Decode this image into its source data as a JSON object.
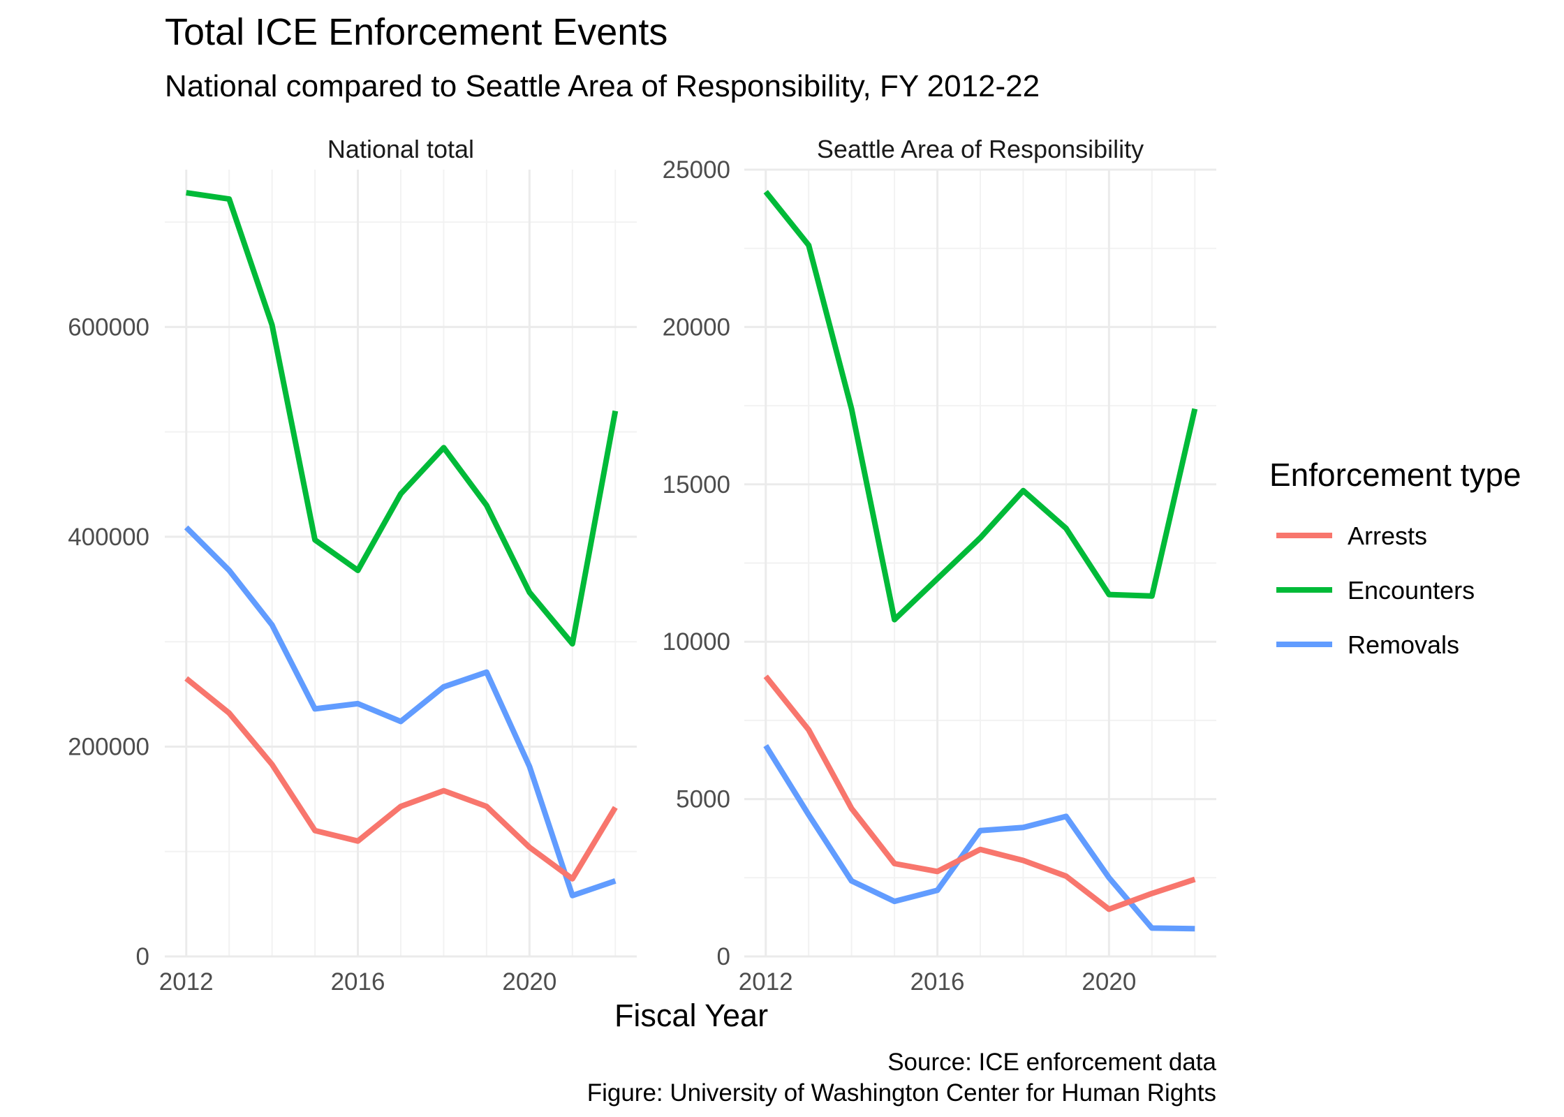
{
  "chart_data": {
    "type": "line",
    "title": "Total ICE Enforcement Events",
    "subtitle": "National compared to Seattle Area of Responsibility, FY 2012-22",
    "xlabel": "Fiscal Year",
    "ylabel": "",
    "x": [
      2012,
      2013,
      2014,
      2015,
      2016,
      2017,
      2018,
      2019,
      2020,
      2021,
      2022
    ],
    "x_ticks": [
      "2012",
      "2016",
      "2020"
    ],
    "grid": true,
    "legend": {
      "title": "Enforcement type",
      "position": "right",
      "items": [
        {
          "name": "Arrests",
          "color": "#F8766D"
        },
        {
          "name": "Encounters",
          "color": "#00BA38"
        },
        {
          "name": "Removals",
          "color": "#619CFF"
        }
      ]
    },
    "caption": [
      "Source: ICE enforcement data",
      "Figure: University of Washington Center for Human Rights"
    ],
    "panels": [
      {
        "strip": "National total",
        "ylim": [
          0,
          750000
        ],
        "y_ticks": [
          "0",
          "200000",
          "400000",
          "600000"
        ],
        "series": [
          {
            "name": "Encounters",
            "values": [
              728000,
              722000,
              602000,
              397000,
              368000,
              441000,
              485000,
              430000,
              347000,
              298000,
              520000
            ]
          },
          {
            "name": "Removals",
            "values": [
              409000,
              368000,
              316000,
              236000,
              241000,
              224000,
              257000,
              271000,
              181000,
              58000,
              72000
            ]
          },
          {
            "name": "Arrests",
            "values": [
              265000,
              232000,
              183000,
              120000,
              110000,
              143000,
              158000,
              143000,
              104000,
              74000,
              142000
            ]
          }
        ]
      },
      {
        "strip": "Seattle Area of Responsibility",
        "ylim": [
          0,
          25000
        ],
        "y_ticks": [
          "0",
          "5000",
          "10000",
          "15000",
          "20000",
          "25000"
        ],
        "series": [
          {
            "name": "Encounters",
            "values": [
              24300,
              22600,
              17400,
              10700,
              12000,
              13300,
              14800,
              13600,
              11500,
              11450,
              17400
            ]
          },
          {
            "name": "Removals",
            "values": [
              6700,
              4500,
              2400,
              1750,
              2100,
              4000,
              4100,
              4450,
              2500,
              900,
              880
            ]
          },
          {
            "name": "Arrests",
            "values": [
              8900,
              7200,
              4700,
              2950,
              2700,
              3400,
              3050,
              2550,
              1500,
              2000,
              2450
            ]
          }
        ]
      }
    ]
  }
}
